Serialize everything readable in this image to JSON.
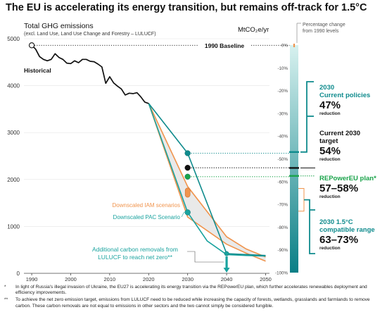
{
  "title": "The EU is accelerating its energy transition, but remains off-track for 1.5°C",
  "colors": {
    "historical": "#111111",
    "current_policies": "#0f8b8d",
    "iam": "#f0944d",
    "pac": "#1aa39f",
    "repower": "#1aa34a",
    "range_fill": "#e9e9e9",
    "bar_dark": "#0a7f86",
    "bar_light": "#d7f1ef",
    "baseline_marker": "#f0944d"
  },
  "chart_data": {
    "type": "line",
    "title": "Total GHG emissions",
    "subtitle": "(excl. Land Use, Land Use Change and Forestry – LULUCF)",
    "unit": "MtCO₂e/yr",
    "xlim": [
      1988,
      2051
    ],
    "ylim": [
      0,
      5000
    ],
    "x_ticks": [
      1990,
      2000,
      2010,
      2020,
      2030,
      2040,
      2050
    ],
    "x_tick_labels": [
      "1990",
      "2000",
      "2010",
      "2020",
      "2030",
      "2040",
      "2050"
    ],
    "y_ticks": [
      0,
      1000,
      2000,
      3000,
      4000,
      5000
    ],
    "y_tick_labels": [
      "0",
      "1000",
      "2000",
      "3000",
      "4000",
      "5000"
    ],
    "baseline": {
      "label": "1990 Baseline",
      "value": 4860
    },
    "historical": {
      "label": "Historical",
      "x": [
        1990,
        1991,
        1992,
        1993,
        1994,
        1995,
        1996,
        1997,
        1998,
        1999,
        2000,
        2001,
        2002,
        2003,
        2004,
        2005,
        2006,
        2007,
        2008,
        2009,
        2010,
        2011,
        2012,
        2013,
        2014,
        2015,
        2016,
        2017,
        2018,
        2019,
        2020
      ],
      "y": [
        4860,
        4780,
        4620,
        4560,
        4530,
        4560,
        4680,
        4600,
        4560,
        4480,
        4470,
        4530,
        4490,
        4560,
        4560,
        4520,
        4510,
        4460,
        4400,
        4050,
        4190,
        4060,
        3990,
        3930,
        3800,
        3840,
        3830,
        3850,
        3760,
        3650,
        3620
      ]
    },
    "series": [
      {
        "key": "current_policies",
        "x": [
          2020,
          2030,
          2040,
          2050
        ],
        "y": [
          3620,
          2560,
          420,
          380
        ]
      },
      {
        "key": "iam_upper",
        "x": [
          2020,
          2030,
          2040,
          2045,
          2050
        ],
        "y": [
          3620,
          1850,
          780,
          520,
          350
        ]
      },
      {
        "key": "iam_lower",
        "x": [
          2020,
          2030,
          2040,
          2045,
          2050
        ],
        "y": [
          3620,
          1200,
          620,
          430,
          260
        ]
      },
      {
        "key": "pac",
        "x": [
          2020,
          2030,
          2035,
          2040,
          2045,
          2050
        ],
        "y": [
          3620,
          1300,
          690,
          400,
          380,
          370
        ]
      }
    ],
    "markers_2030": [
      {
        "key": "current_policies",
        "value": 2560,
        "color": "#0f8b8d"
      },
      {
        "key": "target",
        "value": 2250,
        "color": "#111111"
      },
      {
        "key": "repower",
        "value": 2060,
        "color": "#1aa34a"
      },
      {
        "key": "pac",
        "value": 1300,
        "color": "#1aa39f"
      }
    ],
    "iam_2030_range": [
      1620,
      1820
    ],
    "net_zero": {
      "year": 2040,
      "value": 420
    },
    "annotations": {
      "iam": "Downscaled IAM scenarios",
      "pac": "Downscaled PAC Scenario",
      "removals_line1": "Additional carbon removals from",
      "removals_line2": "LULUCF to reach net zero**"
    },
    "pct_axis": {
      "title_line1": "Percentage change",
      "title_line2": "from 1990 levels",
      "ticks": [
        0,
        -10,
        -20,
        -30,
        -40,
        -50,
        -60,
        -70,
        -80,
        -90,
        -100
      ],
      "tick_labels": [
        "0%",
        "-10%",
        "-20%",
        "-30%",
        "-40%",
        "-50%",
        "-60%",
        "-70%",
        "-80%",
        "-90%",
        "-100%"
      ]
    },
    "callouts": [
      {
        "key": "current_policies",
        "label_lines": [
          "2030",
          "Current policies"
        ],
        "value": "47%",
        "sub": "reduction",
        "pct": -47,
        "color": "#0f8b8d"
      },
      {
        "key": "target",
        "label_lines": [
          "Current 2030",
          "target"
        ],
        "value": "54%",
        "sub": "reduction",
        "pct": -54,
        "color": "#111111"
      },
      {
        "key": "repower",
        "label_lines": [
          "REPowerEU plan*"
        ],
        "value": "57–58%",
        "sub": "reduction",
        "pct": -57.5,
        "color": "#1aa34a"
      },
      {
        "key": "range",
        "label_lines": [
          "2030 1.5°C",
          "compatible range"
        ],
        "value": "63–73%",
        "sub": "reduction",
        "pct_range": [
          -63,
          -73
        ],
        "color": "#0f8b8d"
      }
    ]
  },
  "notes": [
    {
      "marker": "*",
      "text": "In light of Russia's illegal invasion of Ukraine, the EU27 is accelerating its energy transition via the REPowerEU plan, which further accelerates renewables deployment and efficiency improvements."
    },
    {
      "marker": "**",
      "text": "To achieve the net zero emission target, emissions from LULUCF need to be reduced while increasing the capacity of forests, wetlands, grasslands and farmlands to remove carbon. These carbon removals are not equal to emissions in other sectors and the two cannot simply be considered fungible."
    }
  ]
}
